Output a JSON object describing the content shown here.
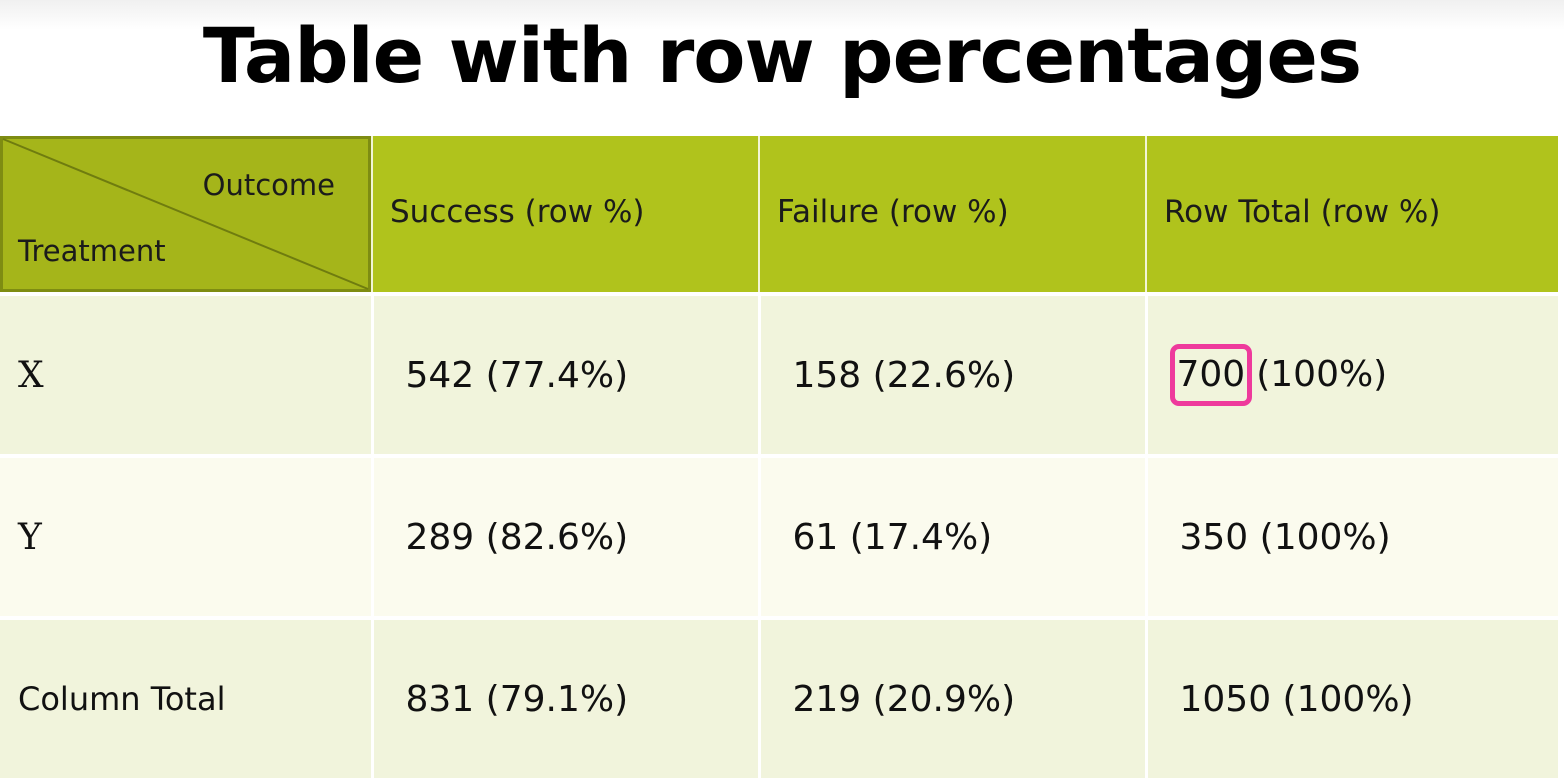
{
  "title": "Table with row percentages",
  "table": {
    "corner": {
      "col_header": "Outcome",
      "row_header": "Treatment"
    },
    "columns": [
      "Success (row %)",
      "Failure (row %)",
      "Row Total (row %)"
    ],
    "rows": [
      {
        "label": "X",
        "cells": [
          "542 (77.4%)",
          "158 (22.6%)",
          "(100%)"
        ],
        "highlight_value": "700"
      },
      {
        "label": "Y",
        "cells": [
          "289 (82.6%)",
          "61 (17.4%)",
          "350 (100%)"
        ]
      },
      {
        "label": "Column Total",
        "cells": [
          "831 (79.1%)",
          "219 (20.9%)",
          "1050 (100%)"
        ]
      }
    ]
  },
  "colors": {
    "header_bg": "#b0c31c",
    "row_light": "#f1f4dc",
    "row_pale": "#fbfbee",
    "highlight_border": "#ee3a9c"
  }
}
